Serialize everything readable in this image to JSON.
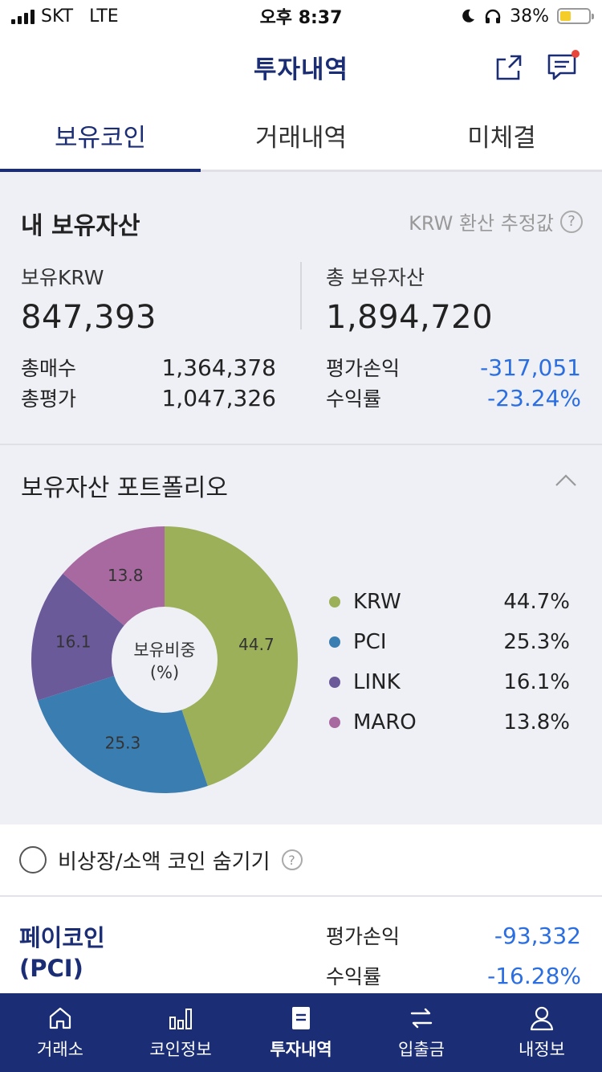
{
  "status_bar": {
    "carrier": "SKT",
    "network": "LTE",
    "time": "오후 8:37",
    "battery": "38%",
    "battery_level": 0.38
  },
  "header": {
    "title": "투자내역"
  },
  "tabs": [
    {
      "label": "보유코인",
      "active": true
    },
    {
      "label": "거래내역",
      "active": false
    },
    {
      "label": "미체결",
      "active": false
    }
  ],
  "assets": {
    "title": "내 보유자산",
    "krw_note": "KRW 환산 추정값",
    "krw_label": "보유KRW",
    "krw_value": "847,393",
    "total_label": "총 보유자산",
    "total_value": "1,894,720",
    "buy_label": "총매수",
    "buy_value": "1,364,378",
    "eval_label": "총평가",
    "eval_value": "1,047,326",
    "pnl_label": "평가손익",
    "pnl_value": "-317,051",
    "rate_label": "수익률",
    "rate_value": "-23.24%"
  },
  "portfolio": {
    "title": "보유자산 포트폴리오",
    "donut_center_line1": "보유비중",
    "donut_center_line2": "(%)",
    "legend": [
      {
        "name": "KRW",
        "value": "44.7%"
      },
      {
        "name": "PCI",
        "value": "25.3%"
      },
      {
        "name": "LINK",
        "value": "16.1%"
      },
      {
        "name": "MARO",
        "value": "13.8%"
      }
    ]
  },
  "chart_data": {
    "type": "pie",
    "categories": [
      "KRW",
      "PCI",
      "LINK",
      "MARO"
    ],
    "values": [
      44.7,
      25.3,
      16.1,
      13.8
    ],
    "labels": [
      "44.7",
      "25.3",
      "16.1",
      "13.8"
    ],
    "colors": [
      "#9cb05a",
      "#3a7db1",
      "#6a5a9a",
      "#a869a0"
    ],
    "center_text": [
      "보유비중",
      "(%)"
    ]
  },
  "hide_option": {
    "label": "비상장/소액 코인 숨기기"
  },
  "coin": {
    "name_line1": "페이코인",
    "name_line2": "(PCI)",
    "pnl_label": "평가손익",
    "pnl_value": "-93,332",
    "rate_label": "수익률",
    "rate_value": "-16.28%"
  },
  "bottom_nav": [
    {
      "label": "거래소",
      "icon": "home-icon"
    },
    {
      "label": "코인정보",
      "icon": "bar-chart-icon"
    },
    {
      "label": "투자내역",
      "icon": "document-icon",
      "active": true
    },
    {
      "label": "입출금",
      "icon": "transfer-icon"
    },
    {
      "label": "내정보",
      "icon": "user-icon"
    }
  ]
}
